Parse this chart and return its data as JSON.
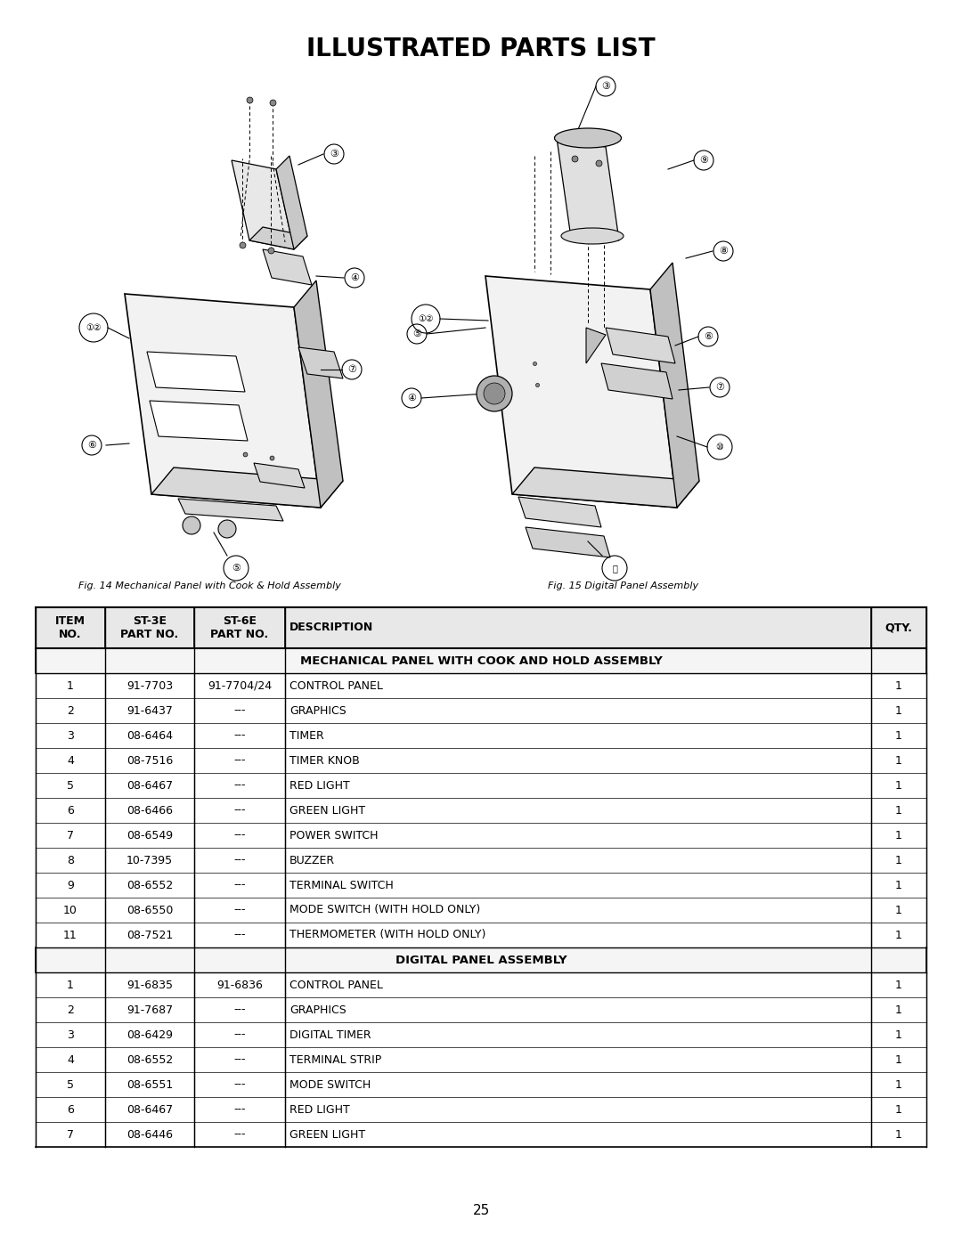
{
  "title": "ILLUSTRATED PARTS LIST",
  "fig_caption_left": "Fig. 14 Mechanical Panel with Cook & Hold Assembly",
  "fig_caption_right": "Fig. 15 Digital Panel Assembly",
  "page_number": "25",
  "background_color": "#ffffff",
  "section1_title": "MECHANICAL PANEL WITH COOK AND HOLD ASSEMBLY",
  "section1_rows": [
    [
      "1",
      "91-7703",
      "91-7704/24",
      "CONTROL PANEL",
      "1"
    ],
    [
      "2",
      "91-6437",
      "---",
      "GRAPHICS",
      "1"
    ],
    [
      "3",
      "08-6464",
      "---",
      "TIMER",
      "1"
    ],
    [
      "4",
      "08-7516",
      "---",
      "TIMER KNOB",
      "1"
    ],
    [
      "5",
      "08-6467",
      "---",
      "RED LIGHT",
      "1"
    ],
    [
      "6",
      "08-6466",
      "---",
      "GREEN LIGHT",
      "1"
    ],
    [
      "7",
      "08-6549",
      "---",
      "POWER SWITCH",
      "1"
    ],
    [
      "8",
      "10-7395",
      "---",
      "BUZZER",
      "1"
    ],
    [
      "9",
      "08-6552",
      "---",
      "TERMINAL SWITCH",
      "1"
    ],
    [
      "10",
      "08-6550",
      "---",
      "MODE SWITCH (WITH HOLD ONLY)",
      "1"
    ],
    [
      "11",
      "08-7521",
      "---",
      "THERMOMETER (WITH HOLD ONLY)",
      "1"
    ]
  ],
  "section2_title": "DIGITAL PANEL ASSEMBLY",
  "section2_rows": [
    [
      "1",
      "91-6835",
      "91-6836",
      "CONTROL PANEL",
      "1"
    ],
    [
      "2",
      "91-7687",
      "---",
      "GRAPHICS",
      "1"
    ],
    [
      "3",
      "08-6429",
      "---",
      "DIGITAL TIMER",
      "1"
    ],
    [
      "4",
      "08-6552",
      "---",
      "TERMINAL STRIP",
      "1"
    ],
    [
      "5",
      "08-6551",
      "---",
      "MODE SWITCH",
      "1"
    ],
    [
      "6",
      "08-6467",
      "---",
      "RED LIGHT",
      "1"
    ],
    [
      "7",
      "08-6446",
      "---",
      "GREEN LIGHT",
      "1"
    ]
  ]
}
